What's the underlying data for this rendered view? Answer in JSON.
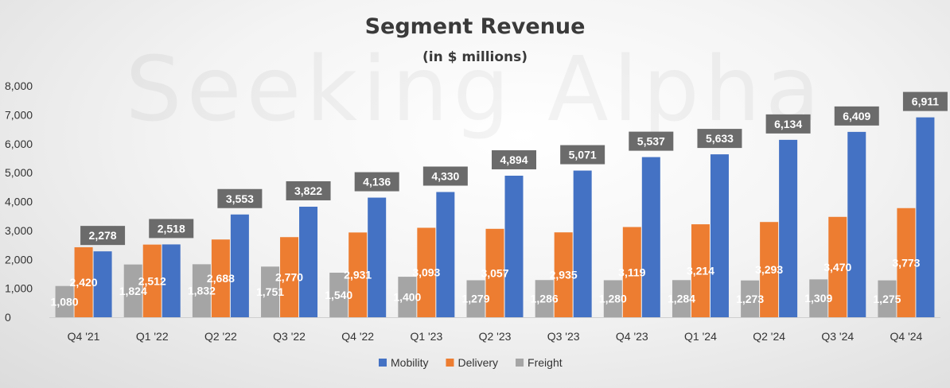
{
  "watermark": "Seeking Alpha",
  "chart_data": {
    "type": "bar",
    "title": "Segment Revenue",
    "subtitle": "(in $ millions)",
    "xlabel": "",
    "ylabel": "",
    "ylim": [
      0,
      8000
    ],
    "yticks": [
      "0",
      "1,000",
      "2,000",
      "3,000",
      "4,000",
      "5,000",
      "6,000",
      "7,000",
      "8,000"
    ],
    "grid": false,
    "legend_position": "bottom",
    "categories": [
      "Q4 '21",
      "Q1 '22",
      "Q2 '22",
      "Q3 '22",
      "Q4 '22",
      "Q1 '23",
      "Q2 '23",
      "Q3 '23",
      "Q4 '23",
      "Q1 '24",
      "Q2 '24",
      "Q3 '24",
      "Q4 '24"
    ],
    "series": [
      {
        "name": "Freight",
        "color": "#a5a5a5",
        "values": [
          1080,
          1824,
          1832,
          1751,
          1540,
          1400,
          1279,
          1286,
          1280,
          1284,
          1273,
          1309,
          1275
        ],
        "labels": [
          "1,080",
          "1,824",
          "1,832",
          "1,751",
          "1,540",
          "1,400",
          "1,279",
          "1,286",
          "1,280",
          "1,284",
          "1,273",
          "1,309",
          "1,275"
        ]
      },
      {
        "name": "Delivery",
        "color": "#ed7d31",
        "values": [
          2420,
          2512,
          2688,
          2770,
          2931,
          3093,
          3057,
          2935,
          3119,
          3214,
          3293,
          3470,
          3773
        ],
        "labels": [
          "2,420",
          "2,512",
          "2,688",
          "2,770",
          "2,931",
          "3,093",
          "3,057",
          "2,935",
          "3,119",
          "3,214",
          "3,293",
          "3,470",
          "3,773"
        ]
      },
      {
        "name": "Mobility",
        "color": "#4472c4",
        "values": [
          2278,
          2518,
          3553,
          3822,
          4136,
          4330,
          4894,
          5071,
          5537,
          5633,
          6134,
          6409,
          6911
        ],
        "labels": [
          "2,278",
          "2,518",
          "3,553",
          "3,822",
          "4,136",
          "4,330",
          "4,894",
          "5,071",
          "5,537",
          "5,633",
          "6,134",
          "6,409",
          "6,911"
        ]
      }
    ],
    "legend": [
      "Mobility",
      "Delivery",
      "Freight"
    ],
    "label_box_color": "#6b6b6b"
  }
}
